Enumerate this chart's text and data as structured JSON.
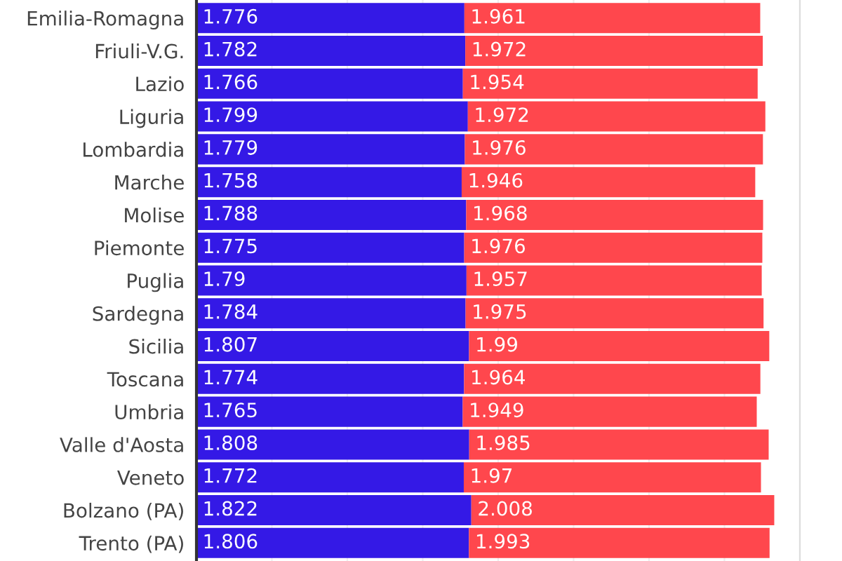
{
  "chart_data": {
    "type": "bar",
    "orientation": "horizontal",
    "stacked": true,
    "data_labels": true,
    "categories": [
      "Emilia-Romagna",
      "Friuli-V.G.",
      "Lazio",
      "Liguria",
      "Lombardia",
      "Marche",
      "Molise",
      "Piemonte",
      "Puglia",
      "Sardegna",
      "Sicilia",
      "Toscana",
      "Umbria",
      "Valle d'Aosta",
      "Veneto",
      "Bolzano (PA)",
      "Trento (PA)"
    ],
    "series": [
      {
        "color": "#3419e6",
        "values": [
          1.776,
          1.782,
          1.766,
          1.799,
          1.779,
          1.758,
          1.788,
          1.775,
          1.79,
          1.784,
          1.807,
          1.774,
          1.765,
          1.808,
          1.772,
          1.822,
          1.806
        ]
      },
      {
        "color": "#ff474d",
        "values": [
          1.961,
          1.972,
          1.954,
          1.972,
          1.976,
          1.946,
          1.968,
          1.976,
          1.957,
          1.975,
          1.99,
          1.964,
          1.949,
          1.985,
          1.97,
          2.008,
          1.993
        ]
      }
    ],
    "xlim": [
      0,
      4.0
    ],
    "xticks": [
      {
        "value": 0,
        "label": null
      },
      {
        "value": 0.5,
        "label": null
      },
      {
        "value": 1.0,
        "label": null
      },
      {
        "value": 1.5,
        "label": null
      },
      {
        "value": 2.0,
        "label": null
      },
      {
        "value": 2.5,
        "label": null
      },
      {
        "value": 3.0,
        "label": null
      },
      {
        "value": 3.5,
        "label": null
      },
      {
        "value": 4.0,
        "label": null
      }
    ],
    "tick_labels": "y",
    "grid": "x",
    "legend": false
  }
}
